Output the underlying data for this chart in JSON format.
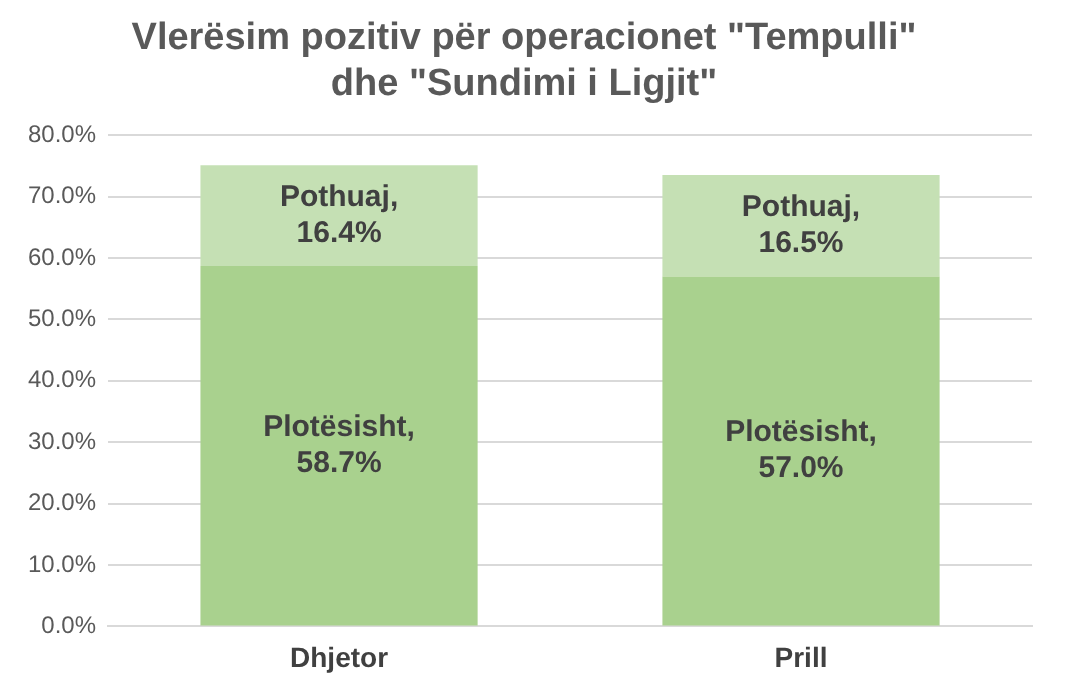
{
  "chart_data": {
    "type": "bar",
    "title": "Vlerësim pozitiv për operacionet \"Tempulli\" dhe \"Sundimi i Ligjit\"",
    "categories": [
      "Dhjetor",
      "Prill"
    ],
    "stacked": true,
    "series": [
      {
        "name": "Plotësisht",
        "color": "#a9d18e",
        "values": [
          58.7,
          57.0
        ],
        "value_labels": [
          ", 58.7%",
          ", 57.0%"
        ]
      },
      {
        "name": "Pothuaj",
        "color": "#c5e0b4",
        "values": [
          16.4,
          16.5
        ],
        "value_labels": [
          ", 16.4%",
          ", 16.5%"
        ]
      }
    ],
    "ylim": [
      0,
      80
    ],
    "yticks": [
      {
        "value": 0,
        "label": "0.0%"
      },
      {
        "value": 10,
        "label": "10.0%"
      },
      {
        "value": 20,
        "label": "20.0%"
      },
      {
        "value": 30,
        "label": "30.0%"
      },
      {
        "value": 40,
        "label": "40.0%"
      },
      {
        "value": 50,
        "label": "50.0%"
      },
      {
        "value": 60,
        "label": "60.0%"
      },
      {
        "value": 70,
        "label": "70.0%"
      },
      {
        "value": 80,
        "label": "80.0%"
      }
    ],
    "grid": "y",
    "legend": false
  }
}
